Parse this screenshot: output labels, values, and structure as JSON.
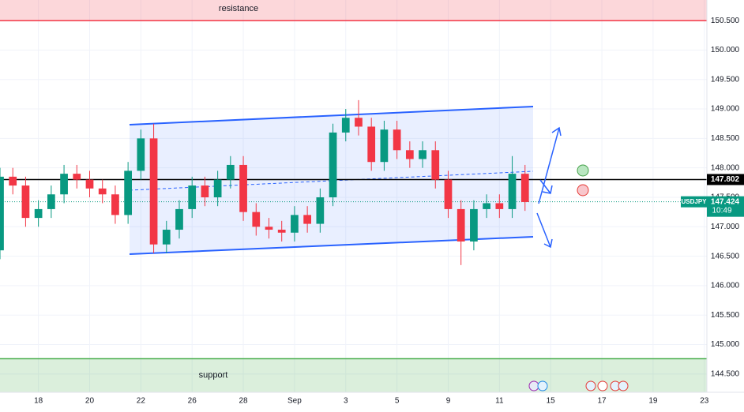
{
  "chart_data": {
    "type": "candlestick",
    "x": [
      -1.5,
      -1,
      -0.5,
      0,
      0.5,
      1,
      1.5,
      2,
      2.5,
      3,
      3.5,
      4,
      4.5,
      5,
      5.5,
      6,
      6.5,
      7,
      7.5,
      8,
      8.5,
      9,
      9.5,
      10,
      10.5,
      11,
      11.5,
      12,
      12.5,
      13,
      13.5,
      14,
      14.5,
      15,
      15.5,
      16,
      16.5,
      17,
      17.5,
      18,
      18.5,
      19
    ],
    "open": [
      146.6,
      147.85,
      147.7,
      147.15,
      147.3,
      147.55,
      147.9,
      147.8,
      147.65,
      147.55,
      147.2,
      147.95,
      148.5,
      146.7,
      146.95,
      147.3,
      147.7,
      147.5,
      147.8,
      148.05,
      147.25,
      147.0,
      146.95,
      146.9,
      147.2,
      147.05,
      147.5,
      148.6,
      148.85,
      148.7,
      148.1,
      148.65,
      148.3,
      148.15,
      148.3,
      147.8,
      147.3,
      146.75,
      147.3,
      147.4,
      147.3,
      147.9
    ],
    "high": [
      148.0,
      148.0,
      147.85,
      147.45,
      147.7,
      148.05,
      148.05,
      147.95,
      147.8,
      147.7,
      148.1,
      148.65,
      148.75,
      147.1,
      147.45,
      147.85,
      147.85,
      147.95,
      148.2,
      148.2,
      147.4,
      147.15,
      147.1,
      147.35,
      147.35,
      147.65,
      148.75,
      149.0,
      149.15,
      148.85,
      148.8,
      148.8,
      148.45,
      148.45,
      148.45,
      147.95,
      147.45,
      147.45,
      147.55,
      147.55,
      148.2,
      148.05
    ],
    "low": [
      146.45,
      147.55,
      147.0,
      147.0,
      147.15,
      147.4,
      147.65,
      147.5,
      147.4,
      147.05,
      147.05,
      147.8,
      146.55,
      146.55,
      146.8,
      147.15,
      147.35,
      147.35,
      147.65,
      147.1,
      146.85,
      146.8,
      146.75,
      146.75,
      146.9,
      146.9,
      147.35,
      148.45,
      148.55,
      147.95,
      147.95,
      148.15,
      148.0,
      148.0,
      147.65,
      147.15,
      146.35,
      146.6,
      147.15,
      147.15,
      147.15,
      147.27
    ],
    "close": [
      147.85,
      147.7,
      147.15,
      147.3,
      147.55,
      147.9,
      147.8,
      147.65,
      147.55,
      147.2,
      147.95,
      148.5,
      146.7,
      146.95,
      147.3,
      147.7,
      147.5,
      147.8,
      148.05,
      147.25,
      147.0,
      146.95,
      146.9,
      147.2,
      147.05,
      147.5,
      148.6,
      148.85,
      148.7,
      148.1,
      148.65,
      148.3,
      148.15,
      148.3,
      147.8,
      147.3,
      146.75,
      147.3,
      147.4,
      147.3,
      147.9,
      147.42
    ],
    "up_color": "#089981",
    "down_color": "#f23645",
    "xlim": [
      -1.5,
      26.1
    ],
    "ylim": [
      144.19,
      150.85
    ],
    "xticks": [
      {
        "value": 0,
        "label": "18"
      },
      {
        "value": 2,
        "label": "20"
      },
      {
        "value": 4,
        "label": "22"
      },
      {
        "value": 6,
        "label": "26"
      },
      {
        "value": 8,
        "label": "28"
      },
      {
        "value": 10,
        "label": "Sep"
      },
      {
        "value": 12,
        "label": "3"
      },
      {
        "value": 14,
        "label": "5"
      },
      {
        "value": 16,
        "label": "9"
      },
      {
        "value": 18,
        "label": "11"
      },
      {
        "value": 20,
        "label": "15"
      },
      {
        "value": 22,
        "label": "17"
      },
      {
        "value": 24,
        "label": "19"
      },
      {
        "value": 26,
        "label": "23"
      }
    ],
    "yticks": [
      {
        "value": 150.5,
        "label": "150.500"
      },
      {
        "value": 150,
        "label": "150.000"
      },
      {
        "value": 149.5,
        "label": "149.500"
      },
      {
        "value": 149,
        "label": "149.000"
      },
      {
        "value": 148.5,
        "label": "148.500"
      },
      {
        "value": 148,
        "label": "148.000"
      },
      {
        "value": 147.5,
        "label": "147.500"
      },
      {
        "value": 147,
        "label": "147.000"
      },
      {
        "value": 146.5,
        "label": "146.500"
      },
      {
        "value": 146,
        "label": "146.000"
      },
      {
        "value": 145.5,
        "label": "145.500"
      },
      {
        "value": 145,
        "label": "145.000"
      },
      {
        "value": 144.5,
        "label": "144.500"
      }
    ],
    "zones": [
      {
        "label": "resistance",
        "from": 150.5,
        "to": 150.85,
        "color": "#f23645"
      },
      {
        "label": "support",
        "from": 144.19,
        "to": 144.76,
        "color": "#4caf50"
      }
    ],
    "level": {
      "value": 147.802,
      "label": "147.802"
    },
    "last_price": {
      "symbol": "USDJPY",
      "value": 147.424,
      "label": "147.424",
      "countdown": "10:49"
    }
  }
}
